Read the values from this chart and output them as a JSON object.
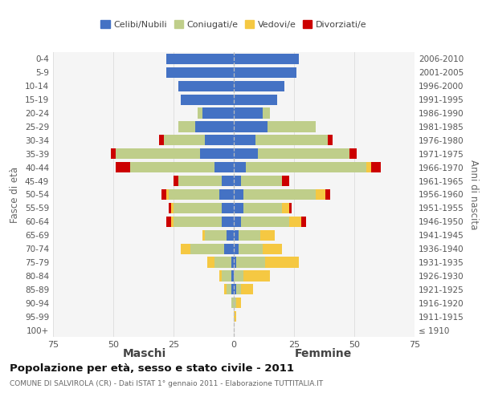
{
  "age_groups": [
    "0-4",
    "5-9",
    "10-14",
    "15-19",
    "20-24",
    "25-29",
    "30-34",
    "35-39",
    "40-44",
    "45-49",
    "50-54",
    "55-59",
    "60-64",
    "65-69",
    "70-74",
    "75-79",
    "80-84",
    "85-89",
    "90-94",
    "95-99",
    "100+"
  ],
  "birth_years": [
    "2006-2010",
    "2001-2005",
    "1996-2000",
    "1991-1995",
    "1986-1990",
    "1981-1985",
    "1976-1980",
    "1971-1975",
    "1966-1970",
    "1961-1965",
    "1956-1960",
    "1951-1955",
    "1946-1950",
    "1941-1945",
    "1936-1940",
    "1931-1935",
    "1926-1930",
    "1921-1925",
    "1916-1920",
    "1911-1915",
    "≤ 1910"
  ],
  "colors": {
    "celibe": "#4472C4",
    "coniugato": "#BFCE8A",
    "vedovo": "#F5C842",
    "divorziato": "#CC0000"
  },
  "maschi": {
    "celibe": [
      28,
      28,
      23,
      22,
      13,
      16,
      12,
      14,
      8,
      5,
      6,
      5,
      5,
      3,
      4,
      1,
      1,
      1,
      0,
      0,
      0
    ],
    "coniugato": [
      0,
      0,
      0,
      0,
      2,
      7,
      17,
      35,
      35,
      18,
      21,
      20,
      20,
      9,
      14,
      7,
      4,
      2,
      1,
      0,
      0
    ],
    "vedovo": [
      0,
      0,
      0,
      0,
      0,
      0,
      0,
      0,
      0,
      0,
      1,
      1,
      1,
      1,
      4,
      3,
      1,
      1,
      0,
      0,
      0
    ],
    "divorziato": [
      0,
      0,
      0,
      0,
      0,
      0,
      2,
      2,
      6,
      2,
      2,
      1,
      2,
      0,
      0,
      0,
      0,
      0,
      0,
      0,
      0
    ]
  },
  "femmine": {
    "nubile": [
      27,
      26,
      21,
      18,
      12,
      14,
      9,
      10,
      5,
      3,
      4,
      4,
      3,
      2,
      2,
      1,
      0,
      1,
      0,
      0,
      0
    ],
    "coniugata": [
      0,
      0,
      0,
      0,
      3,
      20,
      30,
      38,
      50,
      17,
      30,
      16,
      20,
      9,
      10,
      12,
      4,
      2,
      1,
      0,
      0
    ],
    "vedova": [
      0,
      0,
      0,
      0,
      0,
      0,
      0,
      0,
      2,
      0,
      4,
      3,
      5,
      6,
      8,
      14,
      11,
      5,
      2,
      1,
      0
    ],
    "divorziata": [
      0,
      0,
      0,
      0,
      0,
      0,
      2,
      3,
      4,
      3,
      2,
      1,
      2,
      0,
      0,
      0,
      0,
      0,
      0,
      0,
      0
    ]
  },
  "title": "Popolazione per età, sesso e stato civile - 2011",
  "subtitle": "COMUNE DI SALVIROLA (CR) - Dati ISTAT 1° gennaio 2011 - Elaborazione TUTTITALIA.IT",
  "maschi_label": "Maschi",
  "femmine_label": "Femmine",
  "ylabel_left": "Fasce di età",
  "ylabel_right": "Anni di nascita",
  "xlim": 75,
  "legend_labels": [
    "Celibi/Nubili",
    "Coniugati/e",
    "Vedovi/e",
    "Divorziati/e"
  ],
  "bg_color": "#ffffff",
  "plot_bg": "#f5f5f5",
  "grid_color": "#dddddd"
}
